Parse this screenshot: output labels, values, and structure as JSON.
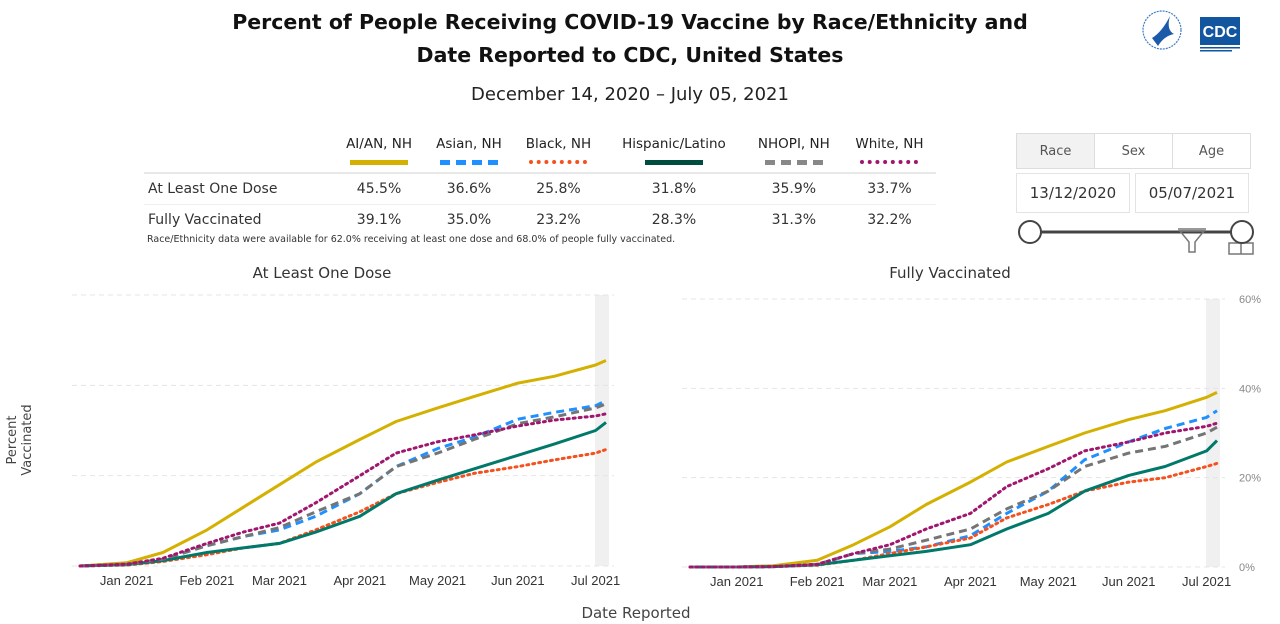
{
  "header": {
    "title_line1": "Percent of People Receiving COVID-19 Vaccine by Race/Ethnicity and",
    "title_line2": "Date Reported to CDC, United States",
    "subtitle": "December 14, 2020 – July 05, 2021",
    "logo_text": "CDC"
  },
  "summary_table": {
    "columns": [
      "AI/AN, NH",
      "Asian, NH",
      "Black, NH",
      "Hispanic/Latino",
      "NHOPI, NH",
      "White, NH"
    ],
    "rows": [
      {
        "label": "At Least One Dose",
        "values": [
          "45.5%",
          "36.6%",
          "25.8%",
          "31.8%",
          "35.9%",
          "33.7%"
        ]
      },
      {
        "label": "Fully Vaccinated",
        "values": [
          "39.1%",
          "35.0%",
          "23.2%",
          "28.3%",
          "31.3%",
          "32.2%"
        ]
      }
    ],
    "note": "Race/Ethnicity data were available for 62.0% receiving at least one dose and 68.0% of people fully vaccinated."
  },
  "controls": {
    "tabs": [
      {
        "label": "Race",
        "selected": true
      },
      {
        "label": "Sex",
        "selected": false
      },
      {
        "label": "Age",
        "selected": false
      }
    ],
    "start_date": "13/12/2020",
    "end_date": "05/07/2021",
    "slider_range": [
      0,
      1
    ]
  },
  "axis": {
    "ylabel": "Percent Vaccinated",
    "xlabel": "Date Reported"
  },
  "chart_data": [
    {
      "type": "line",
      "title": "At Least One Dose",
      "xlabel": "Date Reported",
      "ylabel": "Percent Vaccinated",
      "xlim": [
        "2020-12-14",
        "2021-07-05"
      ],
      "ylim": [
        0,
        60
      ],
      "yticks": [
        0,
        20,
        40,
        60
      ],
      "ytick_labels_shown": false,
      "xtick_labels": [
        "Jan 2021",
        "Feb 2021",
        "Mar 2021",
        "Apr 2021",
        "May 2021",
        "Jun 2021",
        "Jul 2021"
      ],
      "grid": true,
      "x": [
        "2020-12-14",
        "2021-01-01",
        "2021-01-15",
        "2021-02-01",
        "2021-02-15",
        "2021-03-01",
        "2021-03-15",
        "2021-04-01",
        "2021-04-15",
        "2021-05-01",
        "2021-05-15",
        "2021-06-01",
        "2021-06-15",
        "2021-07-01",
        "2021-07-05"
      ],
      "series": [
        {
          "name": "AI/AN, NH",
          "color": "#d4b000",
          "style": "solid",
          "values": [
            0,
            0.7,
            3,
            8,
            13,
            18,
            23,
            28,
            32,
            35,
            37.5,
            40.5,
            42,
            44.5,
            45.5
          ]
        },
        {
          "name": "Asian, NH",
          "color": "#1e90ff",
          "style": "dash",
          "values": [
            0,
            0.3,
            1.5,
            4.5,
            6.5,
            8,
            11,
            16,
            22,
            26,
            28.5,
            32.5,
            34,
            35.5,
            36.6
          ]
        },
        {
          "name": "Black, NH",
          "color": "#f4511e",
          "style": "dot",
          "values": [
            0,
            0.2,
            1,
            2.5,
            4,
            5,
            8,
            12,
            16,
            18.5,
            20.5,
            22,
            23.5,
            25,
            25.8
          ]
        },
        {
          "name": "Hispanic/Latino",
          "color": "#00796b",
          "style": "solid",
          "values": [
            0,
            0.3,
            1.2,
            3,
            4,
            5,
            7.5,
            11,
            16,
            19,
            21.5,
            24.5,
            27,
            30,
            31.8
          ]
        },
        {
          "name": "NHOPI, NH",
          "color": "#757575",
          "style": "dash",
          "values": [
            0,
            0.4,
            1.5,
            4.5,
            6.5,
            8.5,
            12,
            16,
            22,
            25,
            28,
            31.5,
            33,
            35,
            35.9
          ]
        },
        {
          "name": "White, NH",
          "color": "#a0166e",
          "style": "dot",
          "values": [
            0,
            0.4,
            1.7,
            5,
            7.5,
            9.5,
            14,
            20,
            25,
            27.5,
            29,
            31,
            32.3,
            33.2,
            33.7
          ]
        }
      ]
    },
    {
      "type": "line",
      "title": "Fully Vaccinated",
      "xlim": [
        "2020-12-14",
        "2021-07-05"
      ],
      "ylim": [
        0,
        60
      ],
      "yticks": [
        0,
        20,
        40,
        60
      ],
      "ytick_labels": [
        "0%",
        "20%",
        "40%",
        "60%"
      ],
      "xtick_labels": [
        "Jan 2021",
        "Feb 2021",
        "Mar 2021",
        "Apr 2021",
        "May 2021",
        "Jun 2021",
        "Jul 2021"
      ],
      "grid": true,
      "x": [
        "2020-12-14",
        "2021-01-01",
        "2021-01-15",
        "2021-02-01",
        "2021-02-15",
        "2021-03-01",
        "2021-03-15",
        "2021-04-01",
        "2021-04-15",
        "2021-05-01",
        "2021-05-15",
        "2021-06-01",
        "2021-06-15",
        "2021-07-01",
        "2021-07-05"
      ],
      "series": [
        {
          "name": "AI/AN, NH",
          "color": "#d4b000",
          "style": "solid",
          "values": [
            0,
            0,
            0.3,
            1.5,
            5,
            9,
            14,
            19,
            23.5,
            27,
            30,
            33,
            35,
            38,
            39.1
          ]
        },
        {
          "name": "Asian, NH",
          "color": "#1e90ff",
          "style": "dash",
          "values": [
            0,
            0,
            0.1,
            0.5,
            3,
            3.5,
            4.5,
            7,
            12,
            17,
            24,
            28,
            31,
            33.5,
            35
          ]
        },
        {
          "name": "Black, NH",
          "color": "#f4511e",
          "style": "dot",
          "values": [
            0,
            0,
            0.1,
            0.4,
            1.5,
            3,
            4.5,
            6.5,
            11,
            14,
            17,
            19,
            20,
            22.5,
            23.2
          ]
        },
        {
          "name": "Hispanic/Latino",
          "color": "#00796b",
          "style": "solid",
          "values": [
            0,
            0,
            0.1,
            0.5,
            1.5,
            2.5,
            3.5,
            5,
            8.5,
            12,
            17,
            20.5,
            22.5,
            26,
            28.3
          ]
        },
        {
          "name": "NHOPI, NH",
          "color": "#757575",
          "style": "dash",
          "values": [
            0,
            0,
            0.1,
            0.6,
            3,
            4,
            6,
            8.5,
            13,
            17,
            22.5,
            25.5,
            27,
            30,
            31.3
          ]
        },
        {
          "name": "White, NH",
          "color": "#a0166e",
          "style": "dot",
          "values": [
            0,
            0,
            0.1,
            0.6,
            3,
            5,
            8.5,
            12,
            18,
            22,
            26,
            28,
            30,
            31.5,
            32.2
          ]
        }
      ]
    }
  ]
}
